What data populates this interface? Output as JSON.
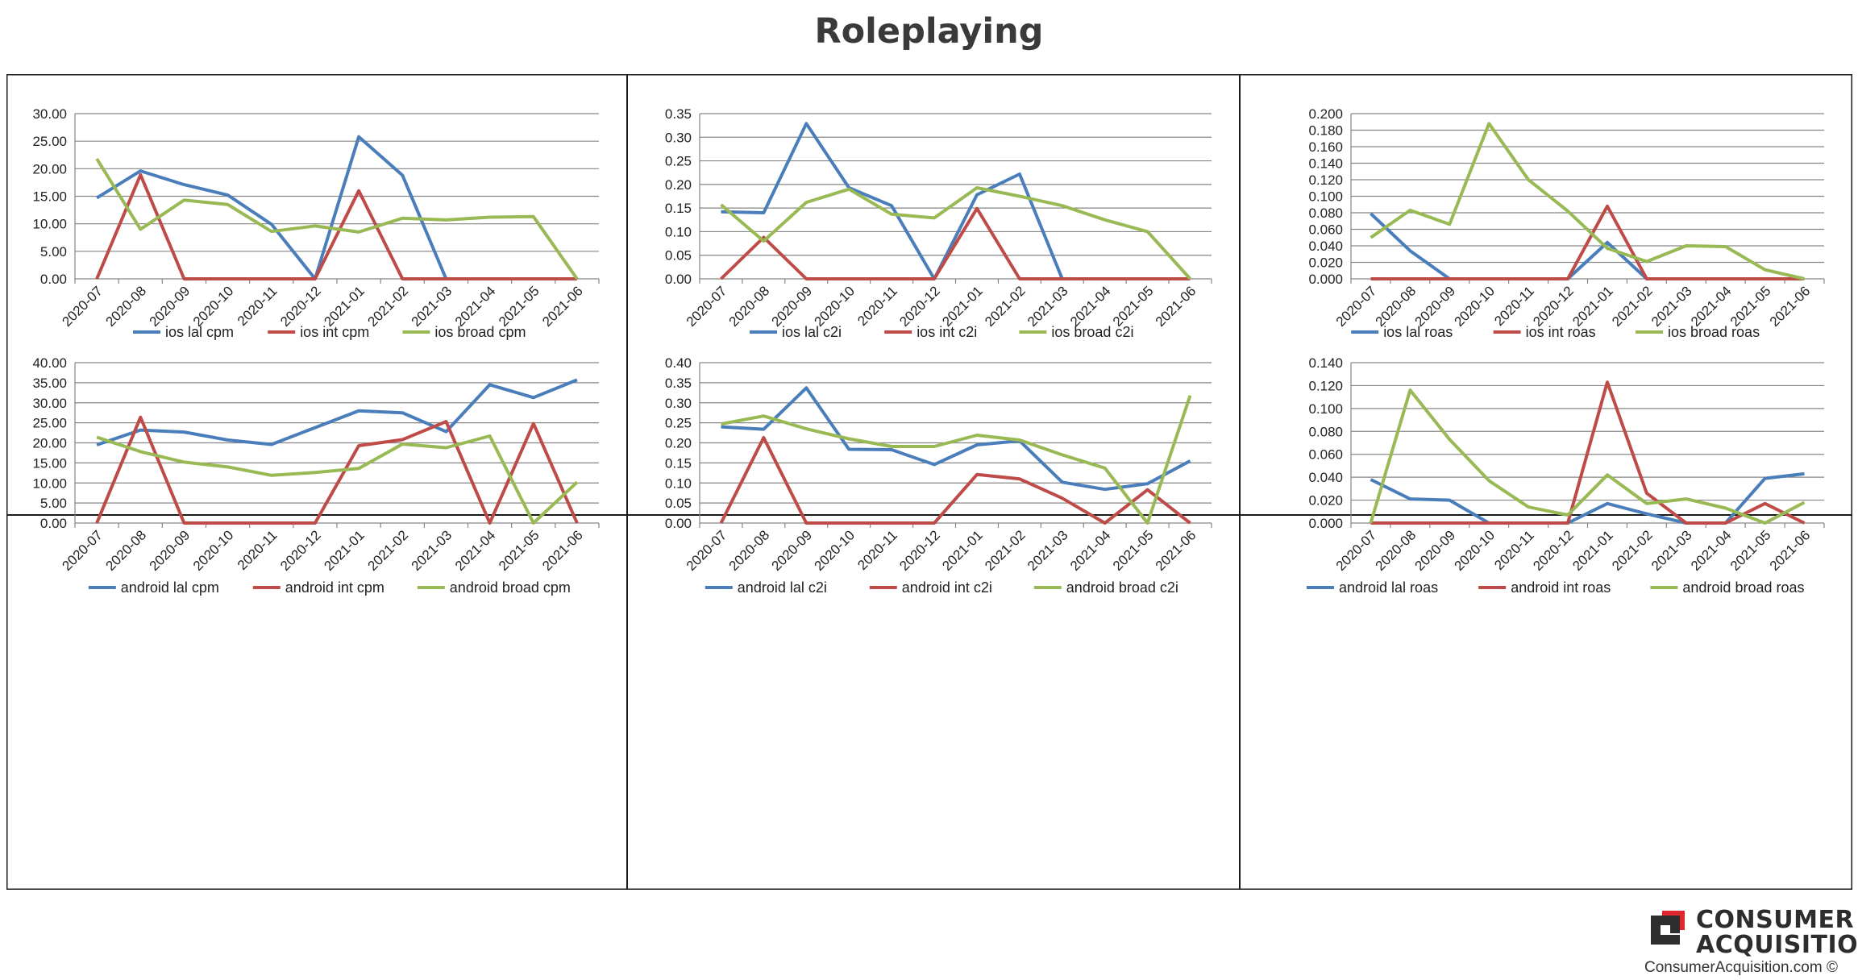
{
  "title": "Roleplaying",
  "brand": {
    "line1": "CONSUMER",
    "line2": "ACQUISITION",
    "site": "ConsumerAcquisition.com ©",
    "accent": "#e0262d"
  },
  "colors": {
    "lal": "#4a7ebb",
    "int": "#be4b48",
    "broad": "#98b954",
    "grid": "#868686",
    "border": "#1a1a1a"
  },
  "chart_data": [
    {
      "type": "line",
      "categories": [
        "2020-07",
        "2020-08",
        "2020-09",
        "2020-10",
        "2020-11",
        "2020-12",
        "2021-01",
        "2021-02",
        "2021-03",
        "2021-04",
        "2021-05",
        "2021-06"
      ],
      "yticks": [
        "0.00",
        "5.00",
        "10.00",
        "15.00",
        "20.00",
        "25.00",
        "30.00"
      ],
      "ylim": [
        0,
        30
      ],
      "series": [
        {
          "name": "ios lal cpm",
          "values": [
            14.7,
            19.6,
            17.1,
            15.2,
            9.9,
            0,
            25.8,
            18.8,
            0,
            null,
            null,
            null
          ]
        },
        {
          "name": "ios int cpm",
          "values": [
            0,
            18.9,
            0,
            0,
            0,
            0,
            16.0,
            0,
            0,
            0,
            0,
            0
          ]
        },
        {
          "name": "ios broad cpm",
          "values": [
            21.8,
            9.0,
            14.3,
            13.5,
            8.6,
            9.6,
            8.5,
            11.0,
            10.7,
            11.2,
            11.3,
            0
          ]
        }
      ]
    },
    {
      "type": "line",
      "categories": [
        "2020-07",
        "2020-08",
        "2020-09",
        "2020-10",
        "2020-11",
        "2020-12",
        "2021-01",
        "2021-02",
        "2021-03",
        "2021-04",
        "2021-05",
        "2021-06"
      ],
      "yticks": [
        "0.00",
        "0.05",
        "0.10",
        "0.15",
        "0.20",
        "0.25",
        "0.30",
        "0.35"
      ],
      "ylim": [
        0,
        0.35
      ],
      "series": [
        {
          "name": "ios lal c2i",
          "values": [
            0.142,
            0.14,
            0.329,
            0.193,
            0.155,
            0,
            0.178,
            0.222,
            0,
            null,
            null,
            null
          ]
        },
        {
          "name": "ios int c2i",
          "values": [
            0,
            0.088,
            0,
            0,
            0,
            0,
            0.149,
            0,
            0,
            0,
            0,
            0
          ]
        },
        {
          "name": "ios broad c2i",
          "values": [
            0.157,
            0.08,
            0.162,
            0.19,
            0.137,
            0.129,
            0.193,
            0.175,
            0.155,
            0.125,
            0.1,
            0
          ]
        }
      ]
    },
    {
      "type": "line",
      "categories": [
        "2020-07",
        "2020-08",
        "2020-09",
        "2020-10",
        "2020-11",
        "2020-12",
        "2021-01",
        "2021-02",
        "2021-03",
        "2021-04",
        "2021-05",
        "2021-06"
      ],
      "yticks": [
        "0.000",
        "0.020",
        "0.040",
        "0.060",
        "0.080",
        "0.100",
        "0.120",
        "0.140",
        "0.160",
        "0.180",
        "0.200"
      ],
      "ylim": [
        0,
        0.2
      ],
      "series": [
        {
          "name": "ios lal roas",
          "values": [
            0.079,
            0.034,
            0,
            0,
            0,
            0,
            0.044,
            0,
            0,
            0,
            0,
            0
          ]
        },
        {
          "name": "ios int roas",
          "values": [
            0,
            0,
            0,
            0,
            0,
            0,
            0.088,
            0,
            0,
            0,
            0,
            0
          ]
        },
        {
          "name": "ios broad roas",
          "values": [
            0.05,
            0.083,
            0.066,
            0.188,
            0.12,
            0.082,
            0.037,
            0.021,
            0.04,
            0.039,
            0.011,
            0
          ]
        }
      ]
    },
    {
      "type": "line",
      "categories": [
        "2020-07",
        "2020-08",
        "2020-09",
        "2020-10",
        "2020-11",
        "2020-12",
        "2021-01",
        "2021-02",
        "2021-03",
        "2021-04",
        "2021-05",
        "2021-06"
      ],
      "yticks": [
        "0.00",
        "5.00",
        "10.00",
        "15.00",
        "20.00",
        "25.00",
        "30.00",
        "35.00",
        "40.00"
      ],
      "ylim": [
        0,
        40
      ],
      "series": [
        {
          "name": "android lal cpm",
          "values": [
            19.5,
            23.2,
            22.7,
            20.7,
            19.6,
            23.8,
            28.0,
            27.5,
            22.8,
            34.5,
            31.3,
            35.7
          ]
        },
        {
          "name": "android int cpm",
          "values": [
            0,
            26.4,
            0,
            0,
            0,
            0,
            19.3,
            20.8,
            25.3,
            0,
            24.8,
            0
          ]
        },
        {
          "name": "android broad cpm",
          "values": [
            21.4,
            17.8,
            15.2,
            14.0,
            11.9,
            12.6,
            13.6,
            19.7,
            18.8,
            21.7,
            0,
            10.2
          ]
        }
      ]
    },
    {
      "type": "line",
      "categories": [
        "2020-07",
        "2020-08",
        "2020-09",
        "2020-10",
        "2020-11",
        "2020-12",
        "2021-01",
        "2021-02",
        "2021-03",
        "2021-04",
        "2021-05",
        "2021-06"
      ],
      "yticks": [
        "0.00",
        "0.05",
        "0.10",
        "0.15",
        "0.20",
        "0.25",
        "0.30",
        "0.35",
        "0.40"
      ],
      "ylim": [
        0,
        0.4
      ],
      "series": [
        {
          "name": "android lal c2i",
          "values": [
            0.24,
            0.234,
            0.337,
            0.184,
            0.183,
            0.146,
            0.195,
            0.205,
            0.102,
            0.084,
            0.098,
            0.155
          ]
        },
        {
          "name": "android int c2i",
          "values": [
            0,
            0.213,
            0,
            0,
            0,
            0,
            0.121,
            0.11,
            0.062,
            0,
            0.083,
            0
          ]
        },
        {
          "name": "android broad c2i",
          "values": [
            0.247,
            0.267,
            0.235,
            0.21,
            0.191,
            0.191,
            0.219,
            0.207,
            0.17,
            0.137,
            0,
            0.318
          ]
        }
      ]
    },
    {
      "type": "line",
      "categories": [
        "2020-07",
        "2020-08",
        "2020-09",
        "2020-10",
        "2020-11",
        "2020-12",
        "2021-01",
        "2021-02",
        "2021-03",
        "2021-04",
        "2021-05",
        "2021-06"
      ],
      "yticks": [
        "0.000",
        "0.020",
        "0.040",
        "0.060",
        "0.080",
        "0.100",
        "0.120",
        "0.140"
      ],
      "ylim": [
        0,
        0.14
      ],
      "series": [
        {
          "name": "android lal roas",
          "values": [
            0.038,
            0.021,
            0.02,
            0,
            0,
            0,
            0.017,
            0.008,
            0,
            0,
            0.039,
            0.043
          ]
        },
        {
          "name": "android int roas",
          "values": [
            0,
            0,
            0,
            0,
            0,
            0,
            0.123,
            0.026,
            0,
            0,
            0.017,
            0
          ]
        },
        {
          "name": "android broad roas",
          "values": [
            0,
            0.116,
            0.073,
            0.037,
            0.014,
            0.007,
            0.042,
            0.017,
            0.021,
            0.013,
            0,
            0.018
          ]
        }
      ]
    }
  ]
}
